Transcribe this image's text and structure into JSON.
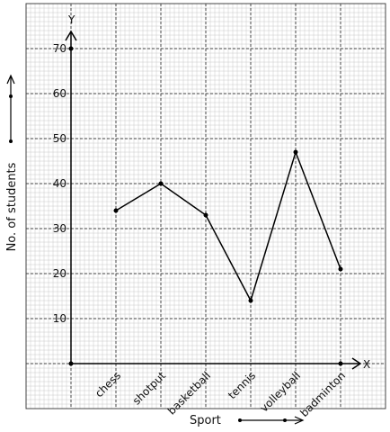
{
  "chart_data": {
    "type": "line",
    "title": "",
    "xlabel": "Sport",
    "ylabel": "No. of students",
    "x_axis_letter": "X",
    "y_axis_letter": "Y",
    "categories": [
      "chess",
      "shotput",
      "basketball",
      "tennis",
      "volleyball",
      "badminton"
    ],
    "values": [
      34,
      40,
      33,
      14,
      47,
      21
    ],
    "y_ticks": [
      10,
      20,
      30,
      40,
      50,
      60,
      70
    ],
    "ylim": [
      0,
      70
    ],
    "grid": true,
    "line_color": "#000000",
    "grid_minor_color": "#c8c8c8",
    "grid_major_color": "#444444"
  }
}
